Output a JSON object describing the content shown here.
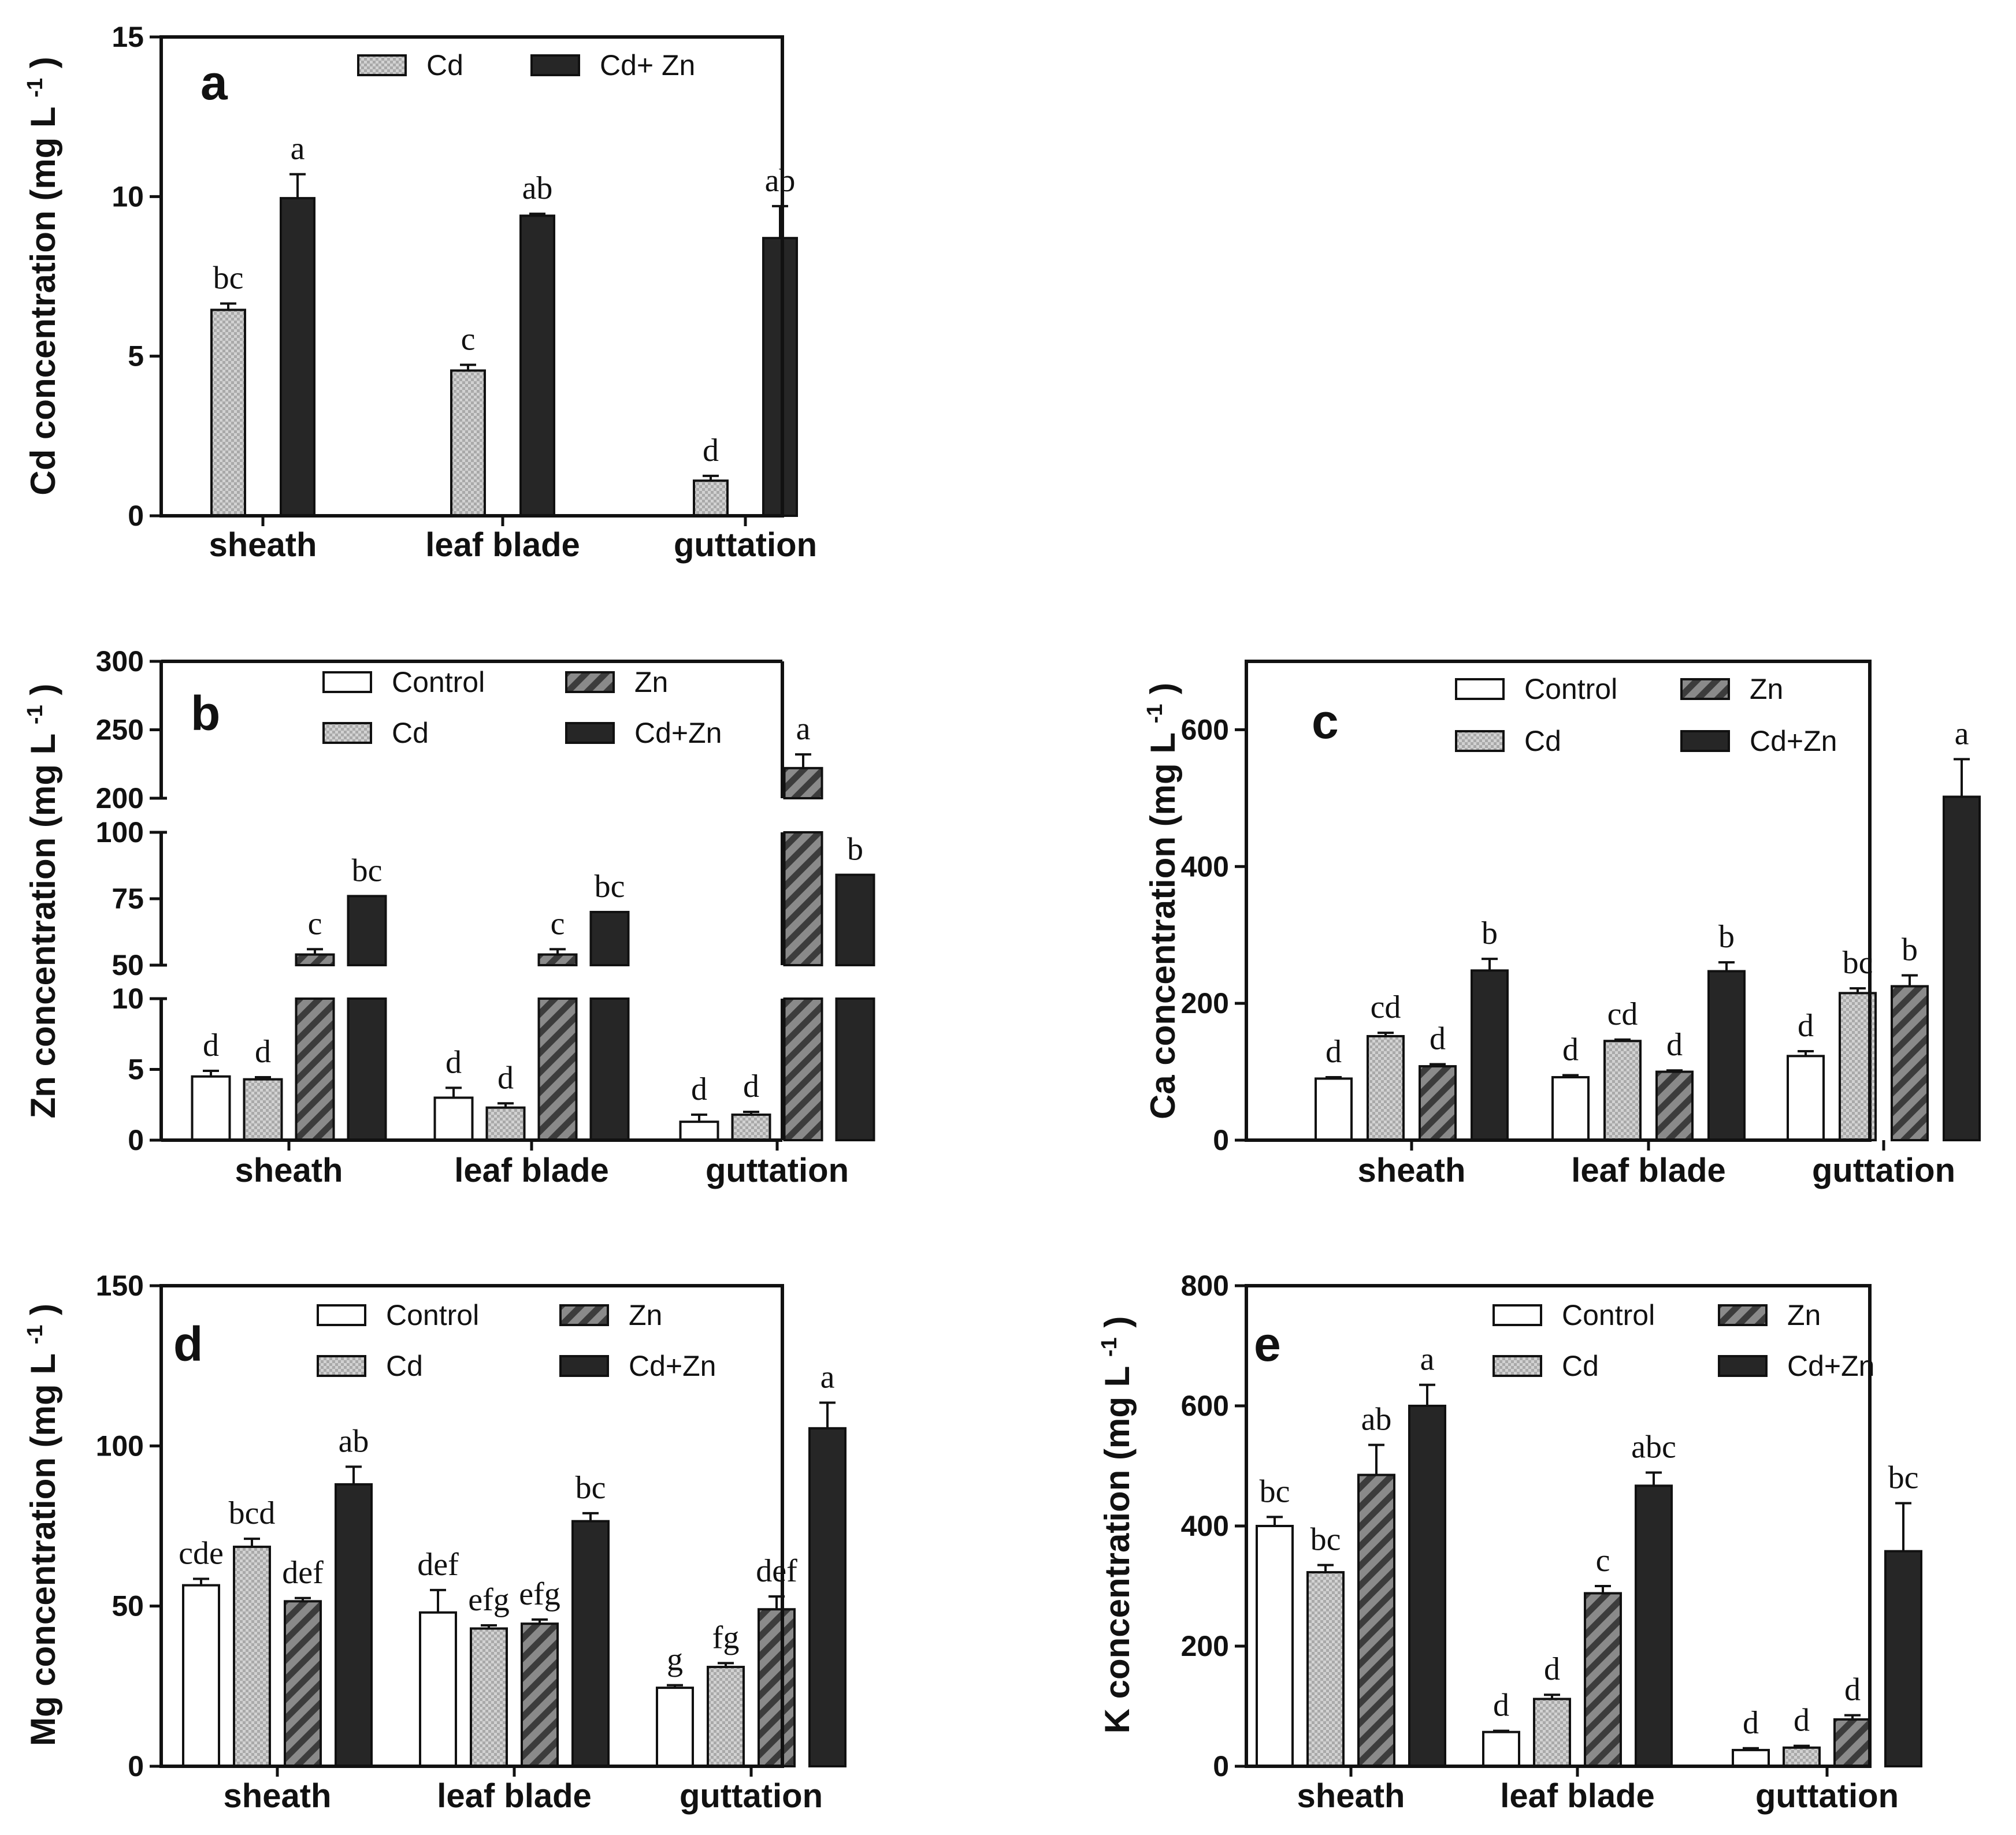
{
  "colors": {
    "control": "#ffffff",
    "cd_fill": "#cfcfcf",
    "zn_fill": "#6a6a6a",
    "cdzn_fill": "#262626",
    "ink": "#111111"
  },
  "chart_data": [
    {
      "id": "a",
      "type": "bar",
      "panel_label": "a",
      "ylabel": "Cd concentration (mg L",
      "ylabel_sup": "-1",
      "ylabel_close": ")",
      "ylim": [
        0,
        15
      ],
      "yticks": [
        0,
        5,
        10,
        15
      ],
      "categories": [
        "sheath",
        "leaf blade",
        "guttation"
      ],
      "legend": [
        "Cd",
        "Cd+ Zn"
      ],
      "series": [
        {
          "name": "Cd",
          "style": "cd",
          "values": [
            6.45,
            4.55,
            1.1
          ],
          "errors": [
            0.2,
            0.18,
            0.15
          ],
          "letters": [
            "bc",
            "c",
            "d"
          ]
        },
        {
          "name": "Cd+ Zn",
          "style": "cdzn",
          "values": [
            9.95,
            9.4,
            8.7
          ],
          "errors": [
            0.75,
            0.06,
            1.0
          ],
          "letters": [
            "a",
            "ab",
            "ab"
          ]
        }
      ]
    },
    {
      "id": "b",
      "type": "bar",
      "panel_label": "b",
      "ylabel": "Zn concentration (mg L",
      "ylabel_sup": "-1",
      "ylabel_close": ")",
      "broken_axis": true,
      "segments": [
        [
          0,
          10
        ],
        [
          50,
          100
        ],
        [
          200,
          300
        ]
      ],
      "yticks": [
        [
          0,
          5,
          10
        ],
        [
          50,
          75,
          100
        ],
        [
          200,
          250,
          300
        ]
      ],
      "categories": [
        "sheath",
        "leaf blade",
        "guttation"
      ],
      "legend": [
        "Control",
        "Zn",
        "Cd",
        "Cd+Zn"
      ],
      "series": [
        {
          "name": "Control",
          "style": "control",
          "values": [
            4.5,
            3.0,
            1.3
          ],
          "errors": [
            0.4,
            0.7,
            0.5
          ],
          "letters": [
            "d",
            "d",
            "d"
          ]
        },
        {
          "name": "Cd",
          "style": "cd",
          "values": [
            4.3,
            2.3,
            1.8
          ],
          "errors": [
            0.15,
            0.3,
            0.2
          ],
          "letters": [
            "d",
            "d",
            "d"
          ]
        },
        {
          "name": "Zn",
          "style": "zn",
          "values": [
            54,
            54,
            222
          ],
          "errors": [
            2,
            2,
            10
          ],
          "letters": [
            "c",
            "c",
            "a"
          ]
        },
        {
          "name": "Cd+Zn",
          "style": "cdzn",
          "values": [
            76,
            70,
            84
          ],
          "errors": [
            0,
            0,
            0
          ],
          "letters": [
            "bc",
            "bc",
            "b"
          ]
        }
      ]
    },
    {
      "id": "c",
      "type": "bar",
      "panel_label": "c",
      "ylabel": "Ca concentration (mg L",
      "ylabel_sup": "-1",
      "ylabel_close": ")",
      "ylim": [
        0,
        700
      ],
      "yticks": [
        0,
        200,
        400,
        600
      ],
      "categories": [
        "sheath",
        "leaf blade",
        "guttation"
      ],
      "legend": [
        "Control",
        "Zn",
        "Cd",
        "Cd+Zn"
      ],
      "series": [
        {
          "name": "Control",
          "style": "control",
          "values": [
            90,
            92,
            123
          ],
          "errors": [
            2,
            3,
            7
          ],
          "letters": [
            "d",
            "d",
            "d"
          ]
        },
        {
          "name": "Cd",
          "style": "cd",
          "values": [
            152,
            145,
            215
          ],
          "errors": [
            5,
            2,
            7
          ],
          "letters": [
            "cd",
            "cd",
            "bc"
          ]
        },
        {
          "name": "Zn",
          "style": "zn",
          "values": [
            108,
            100,
            225
          ],
          "errors": [
            3,
            2,
            16
          ],
          "letters": [
            "d",
            "d",
            "b"
          ]
        },
        {
          "name": "Cd+Zn",
          "style": "cdzn",
          "values": [
            248,
            247,
            502
          ],
          "errors": [
            17,
            13,
            55
          ],
          "letters": [
            "b",
            "b",
            "a"
          ]
        }
      ]
    },
    {
      "id": "d",
      "type": "bar",
      "panel_label": "d",
      "ylabel": "Mg concentration (mg L",
      "ylabel_sup": "-1",
      "ylabel_close": ")",
      "ylim": [
        0,
        150
      ],
      "yticks": [
        0,
        50,
        100,
        150
      ],
      "categories": [
        "sheath",
        "leaf blade",
        "guttation"
      ],
      "legend": [
        "Control",
        "Zn",
        "Cd",
        "Cd+Zn"
      ],
      "series": [
        {
          "name": "Control",
          "style": "control",
          "values": [
            56.5,
            48,
            24.5
          ],
          "errors": [
            2,
            7,
            0.8
          ],
          "letters": [
            "cde",
            "def",
            "g"
          ]
        },
        {
          "name": "Cd",
          "style": "cd",
          "values": [
            68.5,
            43,
            31
          ],
          "errors": [
            2.5,
            1,
            1.2
          ],
          "letters": [
            "bcd",
            "efg",
            "fg"
          ]
        },
        {
          "name": "Zn",
          "style": "zn",
          "values": [
            51.5,
            44.5,
            49
          ],
          "errors": [
            1,
            1.3,
            4
          ],
          "letters": [
            "def",
            "efg",
            "def"
          ]
        },
        {
          "name": "Cd+Zn",
          "style": "cdzn",
          "values": [
            88,
            76.5,
            105.5
          ],
          "errors": [
            5.5,
            2.5,
            8
          ],
          "letters": [
            "ab",
            "bc",
            "a"
          ]
        }
      ]
    },
    {
      "id": "e",
      "type": "bar",
      "panel_label": "e",
      "ylabel": "K concentration (mg L",
      "ylabel_sup": "-1",
      "ylabel_close": ")",
      "ylim": [
        0,
        800
      ],
      "yticks": [
        0,
        200,
        400,
        600,
        800
      ],
      "categories": [
        "sheath",
        "leaf blade",
        "guttation"
      ],
      "legend": [
        "Control",
        "Zn",
        "Cd",
        "Cd+Zn"
      ],
      "series": [
        {
          "name": "Control",
          "style": "control",
          "values": [
            400,
            57,
            27
          ],
          "errors": [
            15,
            2,
            3
          ],
          "letters": [
            "bc",
            "d",
            "d"
          ]
        },
        {
          "name": "Cd",
          "style": "cd",
          "values": [
            323,
            112,
            31
          ],
          "errors": [
            12,
            7,
            3
          ],
          "letters": [
            "bc",
            "d",
            "d"
          ]
        },
        {
          "name": "Zn",
          "style": "zn",
          "values": [
            485,
            288,
            78
          ],
          "errors": [
            50,
            12,
            7
          ],
          "letters": [
            "ab",
            "c",
            "d"
          ]
        },
        {
          "name": "Cd+Zn",
          "style": "cdzn",
          "values": [
            600,
            467,
            358
          ],
          "errors": [
            35,
            22,
            80
          ],
          "letters": [
            "a",
            "abc",
            "bc"
          ]
        }
      ]
    }
  ]
}
